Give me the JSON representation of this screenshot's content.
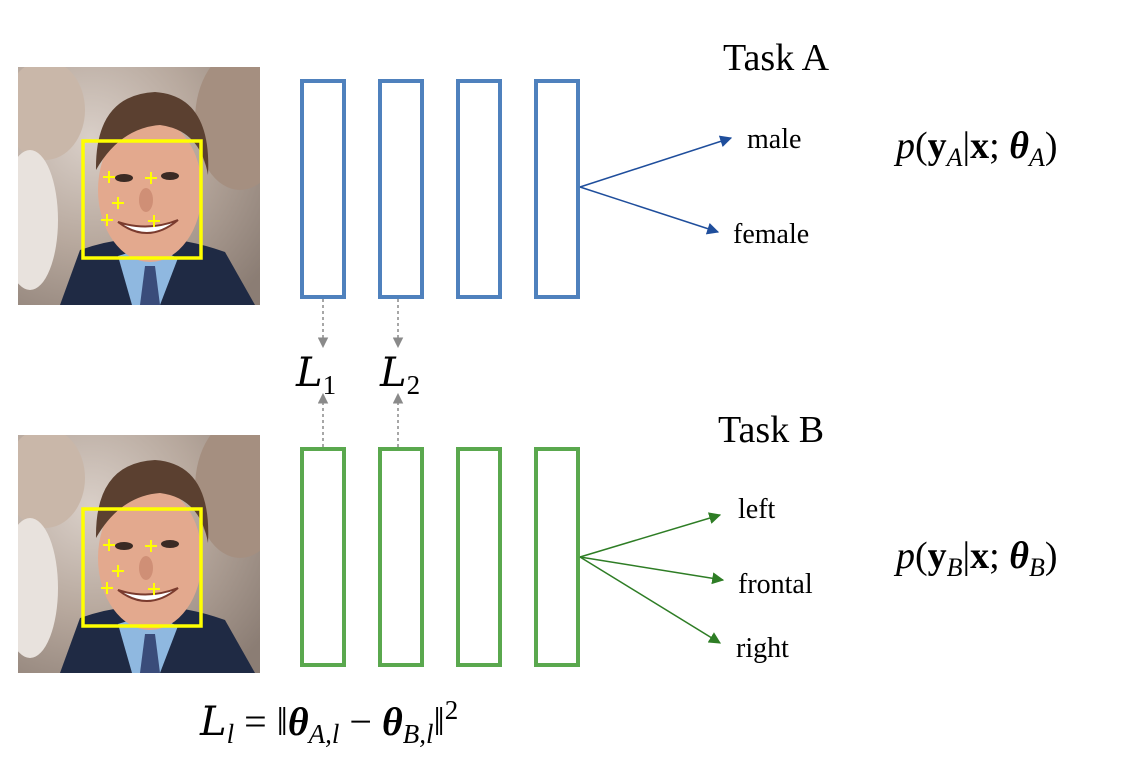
{
  "task_a": {
    "title": "Task A",
    "outputs": [
      "male",
      "female"
    ],
    "formula": {
      "p": "p",
      "y": "y",
      "y_sub": "A",
      "x": "x",
      "theta_sub": "A"
    }
  },
  "task_b": {
    "title": "Task B",
    "outputs": [
      "left",
      "frontal",
      "right"
    ],
    "formula": {
      "p": "p",
      "y": "y",
      "y_sub": "B",
      "x": "x",
      "theta_sub": "B"
    }
  },
  "losses": [
    {
      "symbol": "L",
      "sub": "1"
    },
    {
      "symbol": "L",
      "sub": "2"
    }
  ],
  "loss_equation": {
    "lhs_symbol": "L",
    "lhs_sub": "l",
    "theta_a_sub": "A,l",
    "theta_b_sub": "B,l",
    "power": "2"
  },
  "colors": {
    "task_a": "#4f81bd",
    "task_b": "#5aa84e",
    "arrow_a": "#1f4e9c",
    "arrow_b": "#2e7d25",
    "dashed": "#8a8a8a",
    "landmark_box": "#ffff00"
  },
  "icons": [
    "face-photo-task-a",
    "face-photo-task-b"
  ]
}
